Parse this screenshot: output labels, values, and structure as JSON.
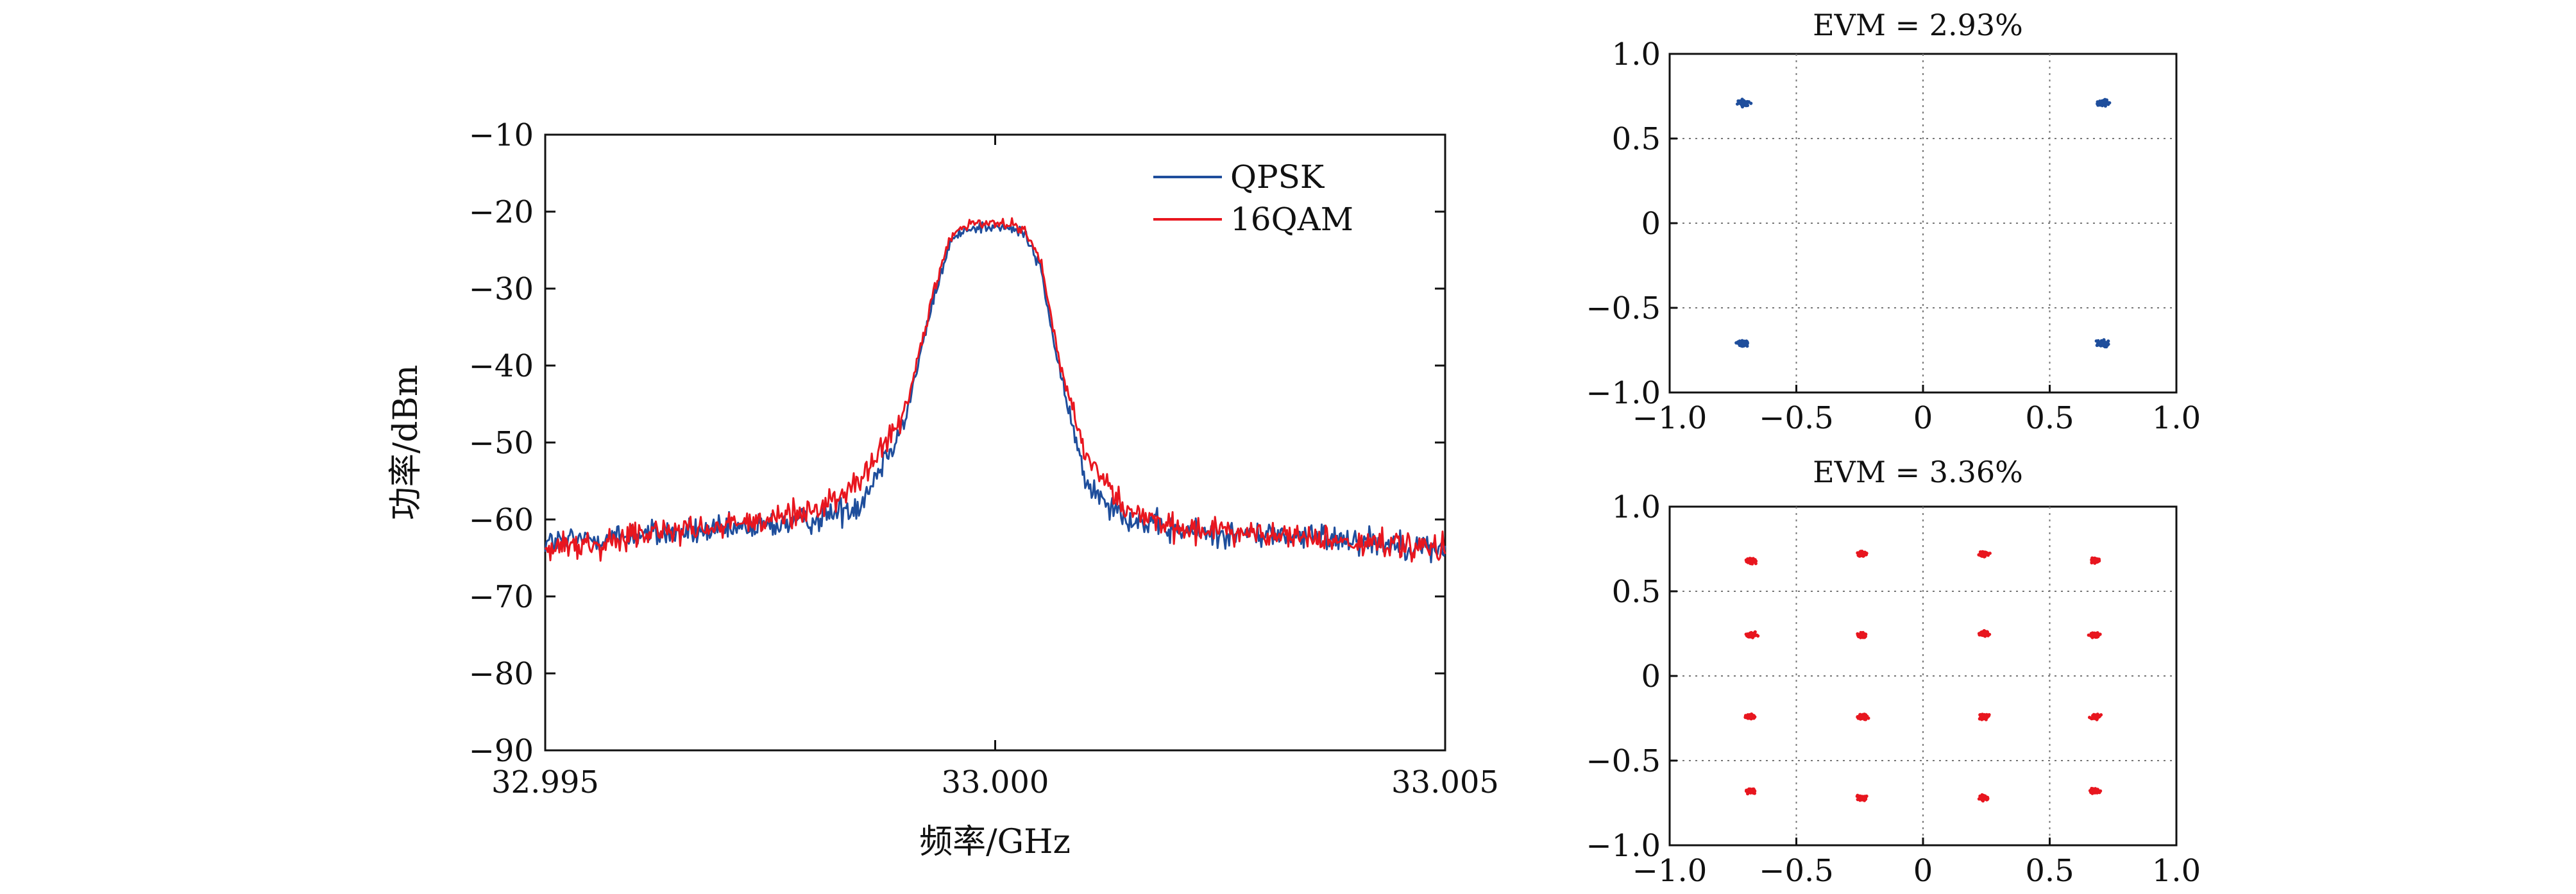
{
  "chart_data": [
    {
      "type": "line",
      "title": "",
      "xlabel": "频率/GHz",
      "ylabel": "功率/dBm",
      "xlim": [
        32.995,
        33.005
      ],
      "ylim": [
        -90,
        -10
      ],
      "x_ticks": [
        "32.995",
        "33.000",
        "33.005"
      ],
      "y_ticks": [
        "−10",
        "−20",
        "−30",
        "−40",
        "−50",
        "−60",
        "−70",
        "−80",
        "−90"
      ],
      "grid": false,
      "legend_position": "top-right",
      "x": [
        32.995,
        32.996,
        32.997,
        32.998,
        32.9985,
        32.999,
        32.9993,
        32.9995,
        32.9997,
        33.0,
        33.0003,
        33.0005,
        33.0007,
        33.001,
        33.0015,
        33.002,
        33.003,
        33.004,
        33.005
      ],
      "series": [
        {
          "name": "QPSK",
          "color": "#1f4e9c",
          "values": [
            -63,
            -62,
            -61.5,
            -60,
            -58,
            -47,
            -32,
            -24,
            -22,
            -22,
            -22.5,
            -27,
            -40,
            -55,
            -60,
            -61.5,
            -62,
            -62.5,
            -64
          ]
        },
        {
          "name": "16QAM",
          "color": "#e8161f",
          "values": [
            -64,
            -62,
            -61,
            -59,
            -55,
            -46,
            -31,
            -23.5,
            -21.5,
            -21.5,
            -22,
            -26,
            -39,
            -52,
            -59,
            -61,
            -62,
            -63,
            -64
          ]
        }
      ]
    },
    {
      "type": "scatter",
      "title": "EVM = 2.93%",
      "title_color": "#1f6fb5",
      "color": "#1f4e9c",
      "xlim": [
        -1.0,
        1.0
      ],
      "ylim": [
        -1.0,
        1.0
      ],
      "x_ticks": [
        "−1.0",
        "−0.5",
        "0",
        "0.5",
        "1.0"
      ],
      "y_ticks": [
        "1.0",
        "0.5",
        "0",
        "−0.5",
        "−1.0"
      ],
      "grid": true,
      "x": [
        -0.71,
        0.71,
        -0.71,
        0.71
      ],
      "y": [
        0.71,
        0.71,
        -0.71,
        -0.71
      ]
    },
    {
      "type": "scatter",
      "title": "EVM = 3.36%",
      "title_color": "#e8161f",
      "color": "#e8161f",
      "xlim": [
        -1.0,
        1.0
      ],
      "ylim": [
        -1.0,
        1.0
      ],
      "x_ticks": [
        "−1.0",
        "−0.5",
        "0",
        "0.5",
        "1.0"
      ],
      "y_ticks": [
        "1.0",
        "0.5",
        "0",
        "−0.5",
        "−1.0"
      ],
      "grid": true,
      "x": [
        -0.68,
        -0.24,
        0.24,
        0.68,
        -0.68,
        -0.24,
        0.24,
        0.68,
        -0.68,
        -0.24,
        0.24,
        0.68,
        -0.68,
        -0.24,
        0.24,
        0.68
      ],
      "y": [
        0.68,
        0.72,
        0.72,
        0.68,
        0.24,
        0.24,
        0.25,
        0.24,
        -0.24,
        -0.24,
        -0.24,
        -0.24,
        -0.68,
        -0.72,
        -0.72,
        -0.68
      ]
    }
  ]
}
